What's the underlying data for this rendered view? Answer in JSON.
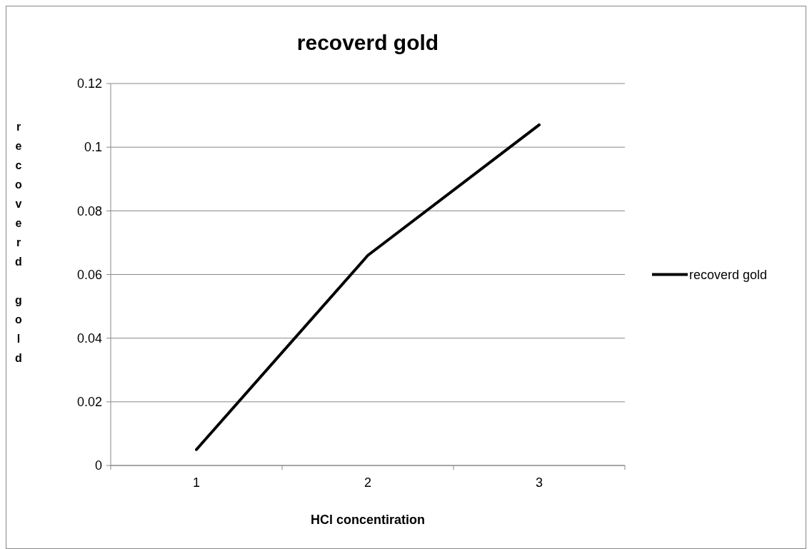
{
  "chart_data": {
    "type": "line",
    "title": "recoverd gold",
    "xlabel": "HCl concentiration",
    "ylabel": "recoverd gold",
    "categories": [
      "1",
      "2",
      "3"
    ],
    "series": [
      {
        "name": "recoverd gold",
        "color": "#000000",
        "values": [
          0.005,
          0.066,
          0.107
        ]
      }
    ],
    "ylim": [
      0,
      0.12
    ],
    "yticks": [
      0,
      0.02,
      0.04,
      0.06,
      0.08,
      0.1,
      0.12
    ],
    "grid": "y",
    "legend": "right",
    "marker": "none",
    "line_style": "solid"
  }
}
